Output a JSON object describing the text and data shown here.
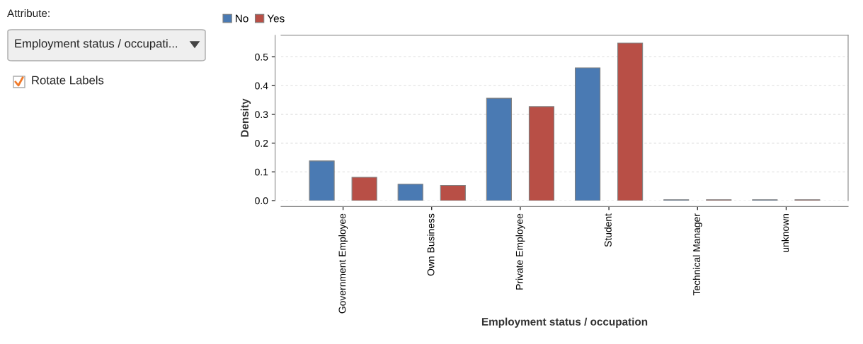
{
  "chart_data": {
    "type": "bar",
    "xlabel": "Employment status / occupation",
    "ylabel": "Density",
    "categories": [
      "Government Employee",
      "Own Business",
      "Private Employee",
      "Student",
      "Technical Manager",
      "unknown"
    ],
    "series": [
      {
        "name": "No",
        "color": "#4a7ab3",
        "values": [
          0.138,
          0.057,
          0.356,
          0.462,
          0.003,
          0.003
        ]
      },
      {
        "name": "Yes",
        "color": "#b84f46",
        "values": [
          0.081,
          0.053,
          0.327,
          0.548,
          0.003,
          0.003
        ]
      }
    ],
    "ylim": [
      0.0,
      0.575
    ],
    "yticks": [
      {
        "value": 0,
        "label": "0.0"
      },
      0.1,
      0.2,
      0.3,
      0.4,
      0.5
    ],
    "grid": "y",
    "legend": "top left",
    "annotations": [
      "Attribute:",
      "Employment status / occupati...",
      "Rotate Labels"
    ]
  }
}
